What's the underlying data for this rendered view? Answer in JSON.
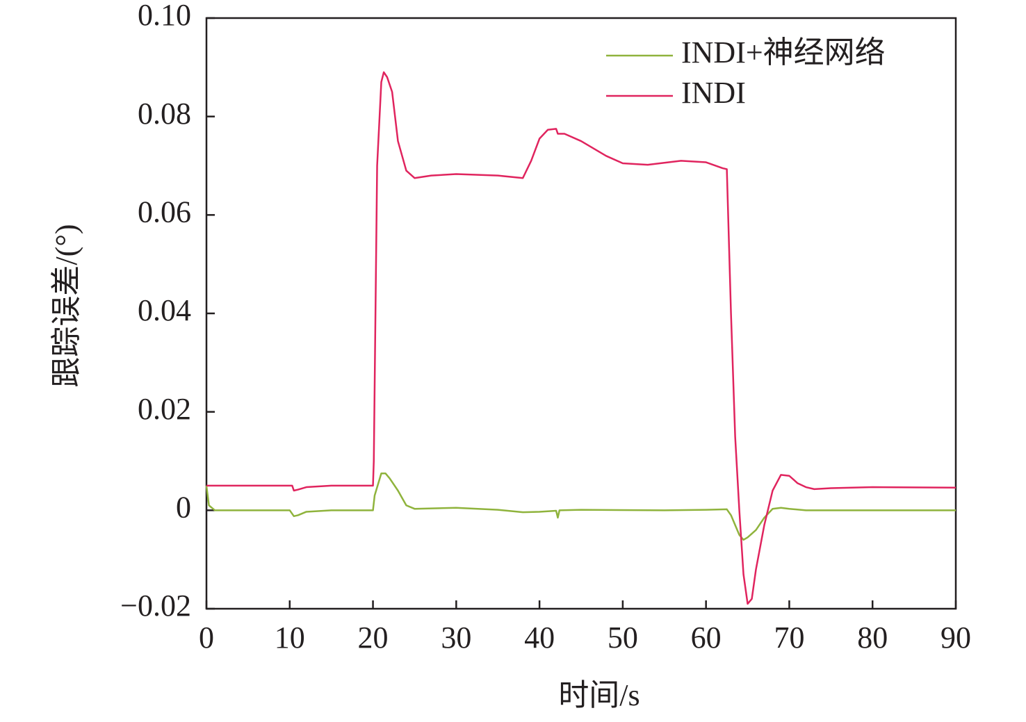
{
  "chart_data": {
    "type": "line",
    "xlabel": "时间/s",
    "ylabel": "跟踪误差/(°)",
    "xlim": [
      0,
      90
    ],
    "xticks": [
      0,
      10,
      20,
      30,
      40,
      50,
      60,
      70,
      80,
      90
    ],
    "ylim": [
      -0.02,
      0.1
    ],
    "yticks": [
      {
        "value": -0.02,
        "label": "−0.02"
      },
      {
        "value": 0,
        "label": "0"
      },
      0.02,
      0.04,
      0.06,
      0.08,
      {
        "value": 0.1,
        "label": "0.10"
      }
    ],
    "legend": "upper right",
    "series": [
      {
        "name": "INDI+神经网络",
        "color": "#8fb33c",
        "x": [
          0,
          0.3,
          1,
          10,
          10.5,
          11,
          12,
          15,
          20,
          20.2,
          21,
          21.5,
          22,
          23,
          24,
          25,
          30,
          35,
          38,
          40,
          42,
          42.2,
          42.4,
          45,
          55,
          60,
          62.5,
          63,
          64,
          64.5,
          65,
          66,
          67,
          68,
          69,
          70,
          72,
          90
        ],
        "values": [
          0.005,
          0.001,
          0.0,
          0.0,
          -0.0012,
          -0.001,
          -0.0003,
          0.0,
          0.0,
          0.003,
          0.0075,
          0.0075,
          0.0065,
          0.004,
          0.001,
          0.0003,
          0.0005,
          0.0001,
          -0.0004,
          -0.0003,
          -0.0001,
          -0.0015,
          0.0,
          0.0001,
          0.0,
          0.0001,
          0.0002,
          -0.001,
          -0.005,
          -0.006,
          -0.0055,
          -0.004,
          -0.0015,
          0.0003,
          0.0005,
          0.0003,
          0.0,
          0.0
        ]
      },
      {
        "name": "INDI",
        "color": "#e0245e",
        "x": [
          0,
          10,
          10.3,
          10.5,
          11,
          12,
          15,
          20,
          20.1,
          20.5,
          21,
          21.3,
          21.7,
          22.3,
          23,
          24,
          25,
          27,
          30,
          35,
          38,
          39,
          40,
          41,
          42,
          42.2,
          43,
          45,
          48,
          50,
          53,
          57,
          60,
          62,
          62.5,
          63,
          63.5,
          64,
          64.5,
          65,
          65.5,
          66,
          67,
          68,
          69,
          70,
          71,
          72,
          73,
          75,
          80,
          90
        ],
        "values": [
          0.005,
          0.005,
          0.005,
          0.004,
          0.0042,
          0.0047,
          0.005,
          0.005,
          0.01,
          0.07,
          0.087,
          0.089,
          0.088,
          0.085,
          0.075,
          0.069,
          0.0675,
          0.068,
          0.0683,
          0.068,
          0.0675,
          0.071,
          0.0755,
          0.0773,
          0.0775,
          0.0765,
          0.0765,
          0.075,
          0.072,
          0.0705,
          0.0702,
          0.071,
          0.0707,
          0.0695,
          0.0693,
          0.04,
          0.015,
          0.0,
          -0.013,
          -0.019,
          -0.018,
          -0.012,
          -0.003,
          0.004,
          0.0072,
          0.007,
          0.0055,
          0.0047,
          0.0043,
          0.0045,
          0.0047,
          0.0046
        ]
      }
    ]
  }
}
